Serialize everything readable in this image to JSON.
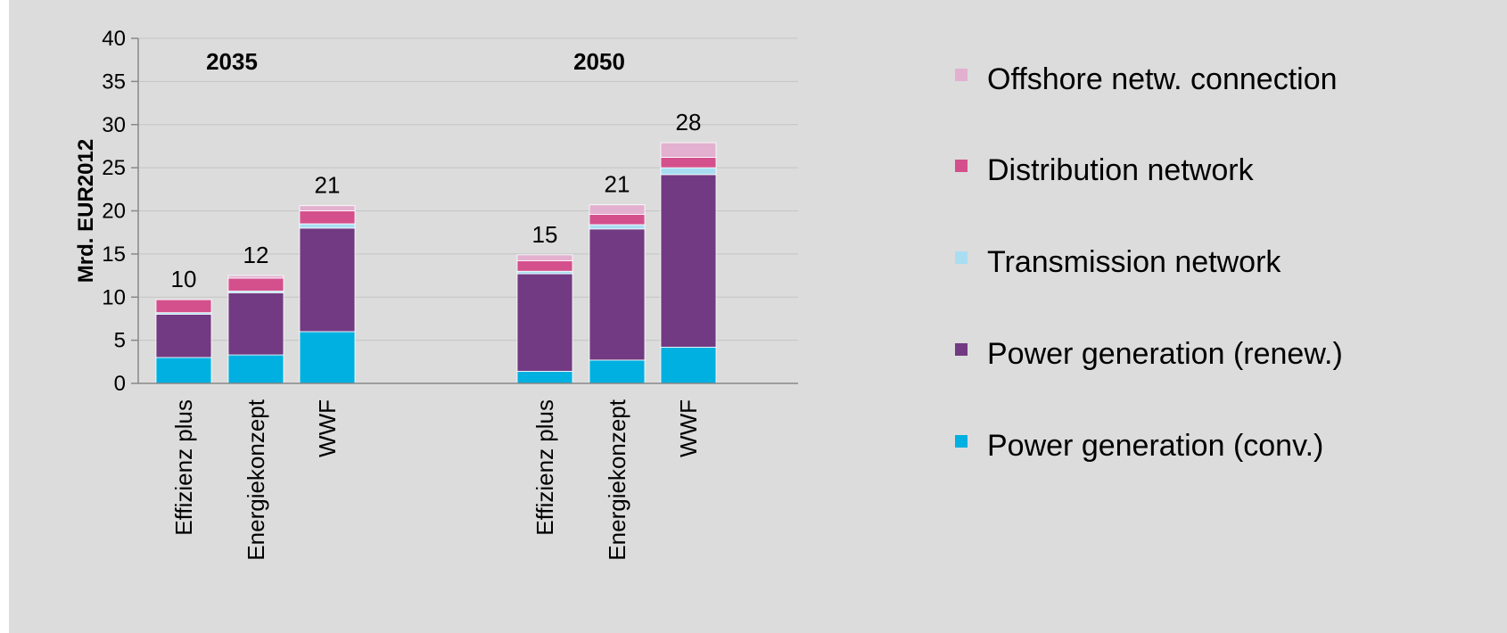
{
  "chart_data": {
    "type": "bar",
    "stacked": true,
    "groups": [
      {
        "label": "2035",
        "categories": [
          "Effizienz plus",
          "Energiekonzept",
          "WWF"
        ]
      },
      {
        "label": "2050",
        "categories": [
          "Effizienz plus",
          "Energiekonzept",
          "WWF"
        ]
      }
    ],
    "ylabel": "Mrd. EUR2012",
    "ylim": [
      0,
      40
    ],
    "yticks": [
      0,
      5,
      10,
      15,
      20,
      25,
      30,
      35,
      40
    ],
    "grid": true,
    "legend_position": "right",
    "series": [
      {
        "name": "Power generation (conv.)",
        "color": "#00b0e0",
        "values": [
          3.0,
          3.3,
          6.0,
          1.4,
          2.7,
          4.2
        ]
      },
      {
        "name": "Power generation (renew.)",
        "color": "#723a82",
        "values": [
          5.0,
          7.2,
          12.0,
          11.3,
          15.2,
          20.0
        ]
      },
      {
        "name": "Transmission network",
        "color": "#a9def2",
        "values": [
          0.2,
          0.2,
          0.5,
          0.3,
          0.5,
          0.8
        ]
      },
      {
        "name": "Distribution network",
        "color": "#d4508c",
        "values": [
          1.5,
          1.5,
          1.5,
          1.2,
          1.2,
          1.2
        ]
      },
      {
        "name": "Offshore netw. connection",
        "color": "#e3b0d0",
        "values": [
          0.0,
          0.3,
          0.6,
          0.7,
          1.1,
          1.7
        ]
      }
    ],
    "totals": [
      "10",
      "12",
      "21",
      "15",
      "21",
      "28"
    ]
  }
}
